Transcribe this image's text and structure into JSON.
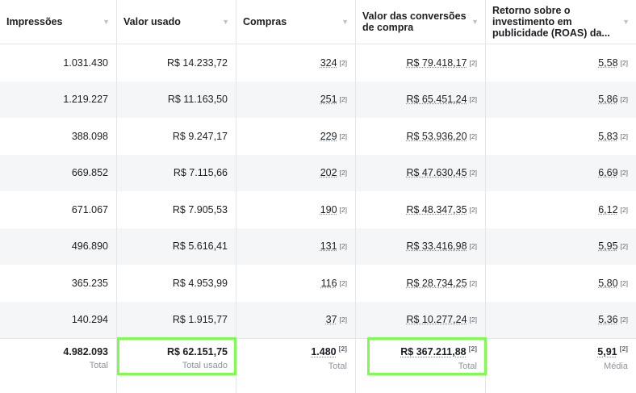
{
  "columns": [
    "Impressões",
    "Valor usado",
    "Compras",
    "Valor das conversões de compra",
    "Retorno sobre o investimento em publicidade (ROAS) da..."
  ],
  "rows": [
    [
      "1.031.430",
      "R$ 14.233,72",
      "324",
      "R$ 79.418,17",
      "5,58"
    ],
    [
      "1.219.227",
      "R$ 11.163,50",
      "251",
      "R$ 65.451,24",
      "5,86"
    ],
    [
      "388.098",
      "R$ 9.247,17",
      "229",
      "R$ 53.936,20",
      "5,83"
    ],
    [
      "669.852",
      "R$ 7.115,66",
      "202",
      "R$ 47.630,45",
      "6,69"
    ],
    [
      "671.067",
      "R$ 7.905,53",
      "190",
      "R$ 48.347,35",
      "6,12"
    ],
    [
      "496.890",
      "R$ 5.616,41",
      "131",
      "R$ 33.416,98",
      "5,95"
    ],
    [
      "365.235",
      "R$ 4.953,99",
      "116",
      "R$ 28.734,25",
      "5,80"
    ],
    [
      "140.294",
      "R$ 1.915,77",
      "37",
      "R$ 10.277,24",
      "5,36"
    ]
  ],
  "footnote": "[2]",
  "totals": [
    {
      "value": "4.982.093",
      "label": "Total"
    },
    {
      "value": "R$ 62.151,75",
      "label": "Total usado"
    },
    {
      "value": "1.480",
      "label": "Total"
    },
    {
      "value": "R$ 367.211,88",
      "label": "Total"
    },
    {
      "value": "5,91",
      "label": "Média"
    }
  ],
  "highlight_color": "#7cfc4c"
}
